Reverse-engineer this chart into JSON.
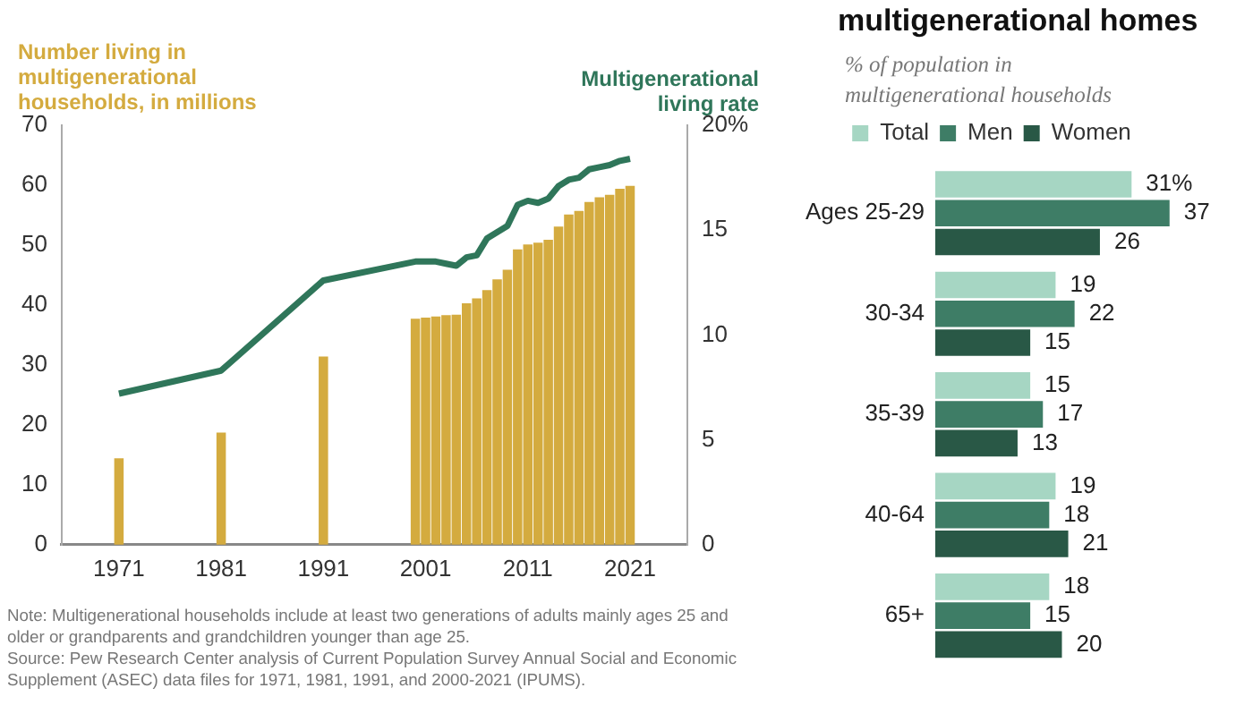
{
  "chart_data": [
    {
      "type": "bar",
      "ylabel": "Number living in multigenerational households, in millions",
      "y2label": "Multigenerational living rate",
      "x": [
        1971,
        1981,
        1991,
        2000,
        2001,
        2002,
        2003,
        2004,
        2005,
        2006,
        2007,
        2008,
        2009,
        2010,
        2011,
        2012,
        2013,
        2014,
        2015,
        2016,
        2017,
        2018,
        2019,
        2020,
        2021
      ],
      "series": [
        {
          "type": "bar",
          "color": "#d4ab3f",
          "values": [
            14.3,
            18.6,
            31.3,
            37.6,
            37.8,
            38.0,
            38.2,
            38.3,
            40.2,
            41.0,
            42.4,
            44.2,
            45.8,
            49.2,
            50.0,
            50.3,
            50.8,
            53.0,
            55.0,
            55.6,
            57.1,
            57.9,
            58.3,
            59.3,
            59.8
          ]
        },
        {
          "type": "line",
          "axis": "y2",
          "color": "#2f765a",
          "marker": "none",
          "values": [
            7.2,
            8.3,
            12.6,
            13.5,
            13.5,
            13.5,
            13.4,
            13.3,
            13.7,
            13.8,
            14.6,
            14.9,
            15.2,
            16.2,
            16.4,
            16.3,
            16.5,
            17.1,
            17.4,
            17.5,
            17.9,
            18.0,
            18.1,
            18.3,
            18.4
          ]
        }
      ],
      "xlim": [
        1970.5,
        2021.5
      ],
      "xticks": [
        1971,
        1981,
        1991,
        2001,
        2011,
        2021
      ],
      "ylim": [
        0,
        70
      ],
      "yticks": [
        0,
        10,
        20,
        30,
        40,
        50,
        60,
        70
      ],
      "y2lim": [
        0,
        20
      ],
      "y2ticks": [
        0,
        5,
        10,
        15,
        {
          "value": 20,
          "label": "20%"
        }
      ],
      "grid": false,
      "legend": false,
      "annotations": [
        "Note: Multigenerational households include at least two generations of adults mainly ages 25 and older or grandparents and grandchildren younger than age 25.",
        "Source: Pew Research Center analysis of Current Population Survey Annual Social and Economic Supplement (ASEC) data files for 1971, 1981, 1991, and 2000-2021 (IPUMS)."
      ]
    },
    {
      "type": "bar",
      "orientation": "horizontal",
      "title": "multigenerational homes",
      "subtitle": "% of population in multigenerational households",
      "categories": [
        "Ages 25-29",
        "30-34",
        "35-39",
        "40-64",
        "65+"
      ],
      "series": [
        {
          "name": "Total",
          "color": "#a6d6c3",
          "values": [
            31,
            19,
            15,
            19,
            18
          ],
          "value_labels": [
            "31%",
            "19",
            "15",
            "19",
            "18"
          ]
        },
        {
          "name": "Men",
          "color": "#3e7d66",
          "values": [
            37,
            22,
            17,
            18,
            15
          ],
          "value_labels": [
            "37",
            "22",
            "17",
            "18",
            "15"
          ]
        },
        {
          "name": "Women",
          "color": "#295846",
          "values": [
            26,
            15,
            13,
            21,
            20
          ],
          "value_labels": [
            "26",
            "15",
            "13",
            "21",
            "20"
          ]
        }
      ],
      "legend": "top",
      "tick_labels": "y"
    }
  ]
}
